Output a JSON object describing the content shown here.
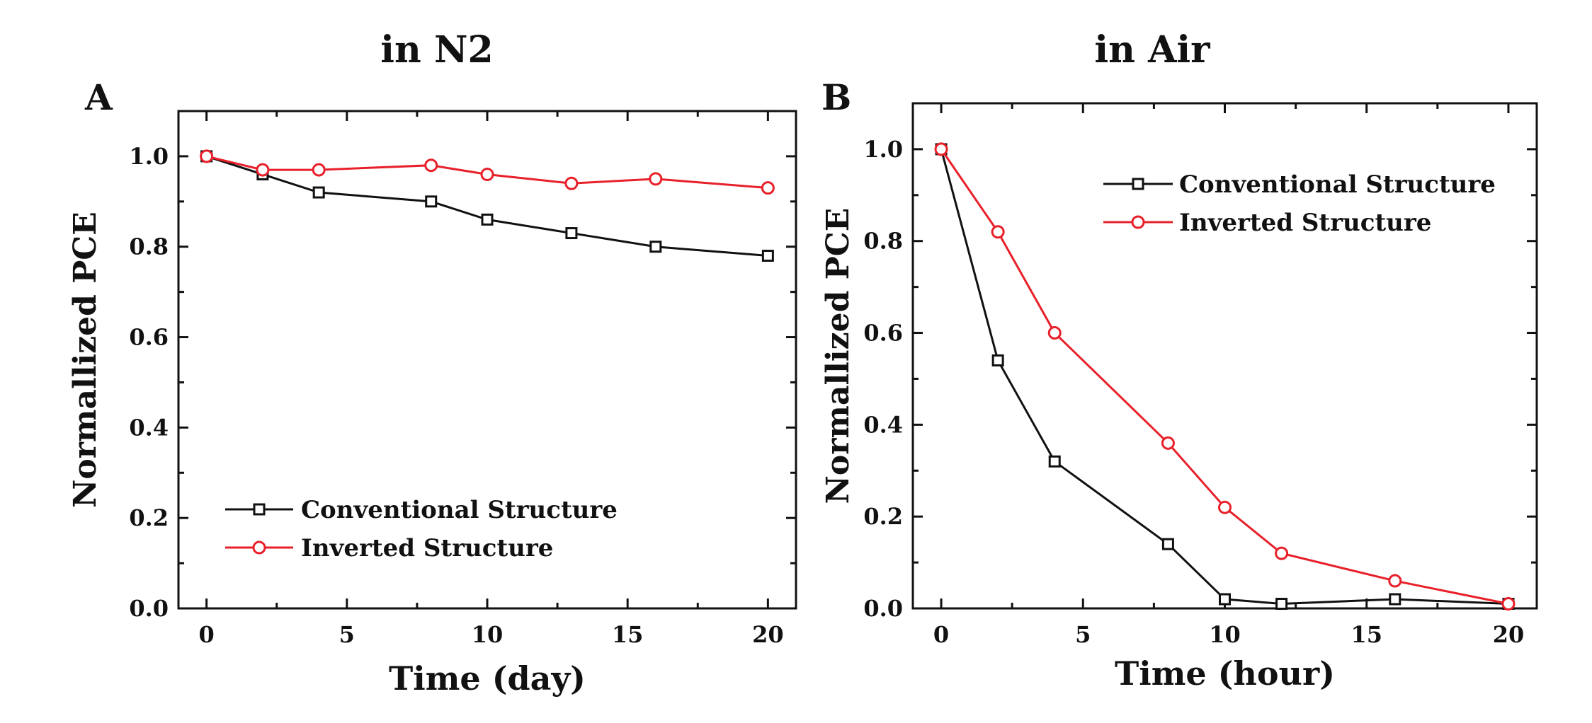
{
  "chart_data": [
    {
      "type": "line",
      "panel_label": "A",
      "title": "in N2",
      "xlabel": "Time (day)",
      "ylabel": "Normallized PCE",
      "xlim": [
        -1,
        21
      ],
      "ylim": [
        0.0,
        1.1
      ],
      "xticks": [
        "0",
        "5",
        "10",
        "15",
        "20"
      ],
      "yticks": [
        "0.0",
        "0.2",
        "0.4",
        "0.6",
        "0.8",
        "1.0"
      ],
      "legend_position": "bottom-left",
      "grid": false,
      "series": [
        {
          "name": "Conventional Structure",
          "color": "#111111",
          "marker": "square",
          "x": [
            0,
            2,
            4,
            8,
            10,
            13,
            16,
            20
          ],
          "y": [
            1.0,
            0.96,
            0.92,
            0.9,
            0.86,
            0.83,
            0.8,
            0.78
          ]
        },
        {
          "name": "Inverted Structure",
          "color": "#e8202a",
          "marker": "circle",
          "x": [
            0,
            2,
            4,
            8,
            10,
            13,
            16,
            20
          ],
          "y": [
            1.0,
            0.97,
            0.97,
            0.98,
            0.96,
            0.94,
            0.95,
            0.93
          ]
        }
      ]
    },
    {
      "type": "line",
      "panel_label": "B",
      "title": "in Air",
      "xlabel": "Time (hour)",
      "ylabel": "Normallized PCE",
      "xlim": [
        -1,
        21
      ],
      "ylim": [
        0.0,
        1.1
      ],
      "xticks": [
        "0",
        "5",
        "10",
        "15",
        "20"
      ],
      "yticks": [
        "0.0",
        "0.2",
        "0.4",
        "0.6",
        "0.8",
        "1.0"
      ],
      "legend_position": "top-right",
      "grid": false,
      "series": [
        {
          "name": "Conventional Structure",
          "color": "#111111",
          "marker": "square",
          "x": [
            0,
            2,
            4,
            8,
            10,
            12,
            16,
            20
          ],
          "y": [
            1.0,
            0.54,
            0.32,
            0.14,
            0.02,
            0.01,
            0.02,
            0.01
          ]
        },
        {
          "name": "Inverted Structure",
          "color": "#e8202a",
          "marker": "circle",
          "x": [
            0,
            2,
            4,
            8,
            10,
            12,
            16,
            20
          ],
          "y": [
            1.0,
            0.82,
            0.6,
            0.36,
            0.22,
            0.12,
            0.06,
            0.01
          ]
        }
      ]
    }
  ]
}
